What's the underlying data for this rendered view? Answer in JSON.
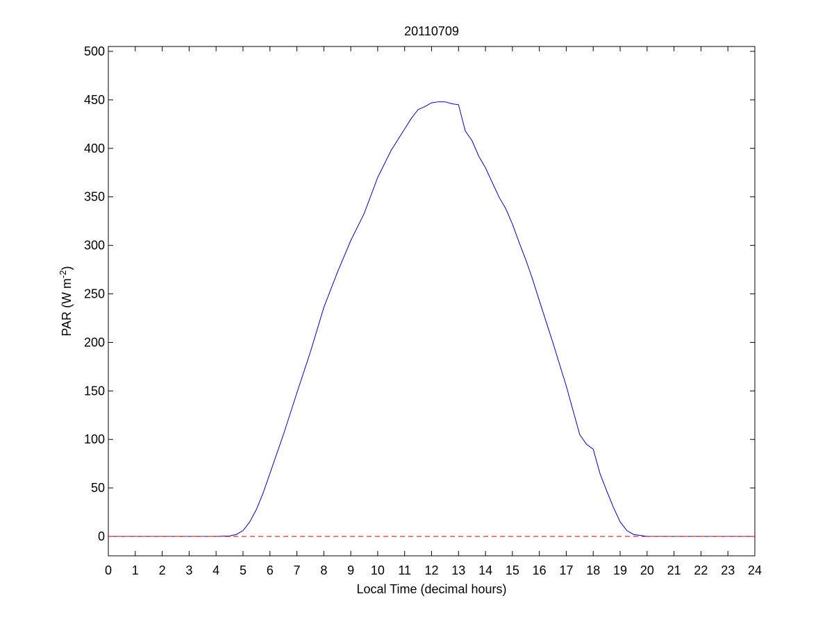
{
  "chart_data": {
    "type": "line",
    "title": "20110709",
    "xlabel": "Local Time (decimal hours)",
    "ylabel": {
      "main": "PAR (W m",
      "superscript": "-2",
      "close": ")"
    },
    "xlim": [
      0,
      24
    ],
    "ylim": [
      -20,
      505
    ],
    "xticks": [
      "0",
      "1",
      "2",
      "3",
      "4",
      "5",
      "6",
      "7",
      "8",
      "9",
      "10",
      "11",
      "12",
      "13",
      "14",
      "15",
      "16",
      "17",
      "18",
      "19",
      "20",
      "21",
      "22",
      "23",
      "24"
    ],
    "yticks": [
      "0",
      "50",
      "100",
      "150",
      "200",
      "250",
      "300",
      "350",
      "400",
      "450",
      "500"
    ],
    "grid": false,
    "series": [
      {
        "color": "#0000aa",
        "style": "solid",
        "x": [
          0,
          2,
          4,
          4.5,
          4.75,
          5,
          5.25,
          5.5,
          5.75,
          6,
          6.5,
          7,
          7.5,
          8,
          8.5,
          9,
          9.5,
          10,
          10.5,
          11,
          11.25,
          11.5,
          11.75,
          12,
          12.25,
          12.5,
          12.75,
          13,
          13.25,
          13.5,
          13.75,
          14,
          14.25,
          14.5,
          14.75,
          15,
          15.25,
          15.5,
          15.75,
          16,
          16.5,
          17,
          17.5,
          17.75,
          18,
          18.25,
          18.5,
          18.75,
          19,
          19.25,
          19.5,
          19.75,
          20,
          20.5,
          22,
          24
        ],
        "y": [
          0,
          0,
          0,
          0.5,
          2,
          6,
          15,
          28,
          45,
          65,
          105,
          148,
          190,
          236,
          272,
          305,
          333,
          370,
          398,
          420,
          431,
          440,
          443,
          447,
          448,
          448,
          446,
          445,
          418,
          408,
          392,
          380,
          365,
          350,
          338,
          322,
          303,
          285,
          265,
          243,
          200,
          155,
          105,
          95,
          90,
          65,
          47,
          30,
          15,
          6,
          2,
          1,
          0,
          0,
          0,
          0
        ]
      },
      {
        "color": "#cc0000",
        "style": "dashed",
        "x": [
          0,
          24
        ],
        "y": [
          0,
          0
        ]
      }
    ]
  }
}
